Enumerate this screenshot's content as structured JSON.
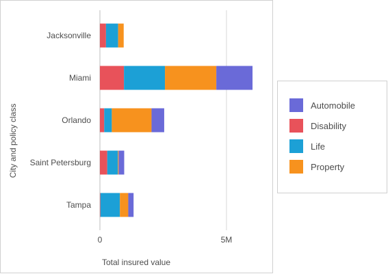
{
  "chart_data": {
    "type": "bar",
    "orientation": "horizontal",
    "stacked": true,
    "xlabel": "Total insured value",
    "ylabel": "City and policy class",
    "categories": [
      "Jacksonville",
      "Miami",
      "Orlando",
      "Saint Petersburg",
      "Tampa"
    ],
    "series": [
      {
        "name": "Disability",
        "color": "#e8525a",
        "values": [
          240000,
          950000,
          170000,
          290000,
          20000
        ]
      },
      {
        "name": "Life",
        "color": "#1ca0d6",
        "values": [
          480000,
          1620000,
          300000,
          420000,
          770000
        ]
      },
      {
        "name": "Property",
        "color": "#f7921e",
        "values": [
          220000,
          2030000,
          1570000,
          30000,
          330000
        ]
      },
      {
        "name": "Automobile",
        "color": "#6a6ad8",
        "values": [
          0,
          1430000,
          500000,
          220000,
          210000
        ]
      }
    ],
    "xlim": [
      0,
      6300000
    ],
    "xticks": [
      0,
      5000000
    ],
    "xtick_labels": [
      "0",
      "5M"
    ],
    "grid": "vertical at ticks",
    "legend": {
      "placement": "right",
      "items": [
        {
          "label": "Automobile",
          "color": "#6a6ad8"
        },
        {
          "label": "Disability",
          "color": "#e8525a"
        },
        {
          "label": "Life",
          "color": "#1ca0d6"
        },
        {
          "label": "Property",
          "color": "#f7921e"
        }
      ]
    }
  }
}
